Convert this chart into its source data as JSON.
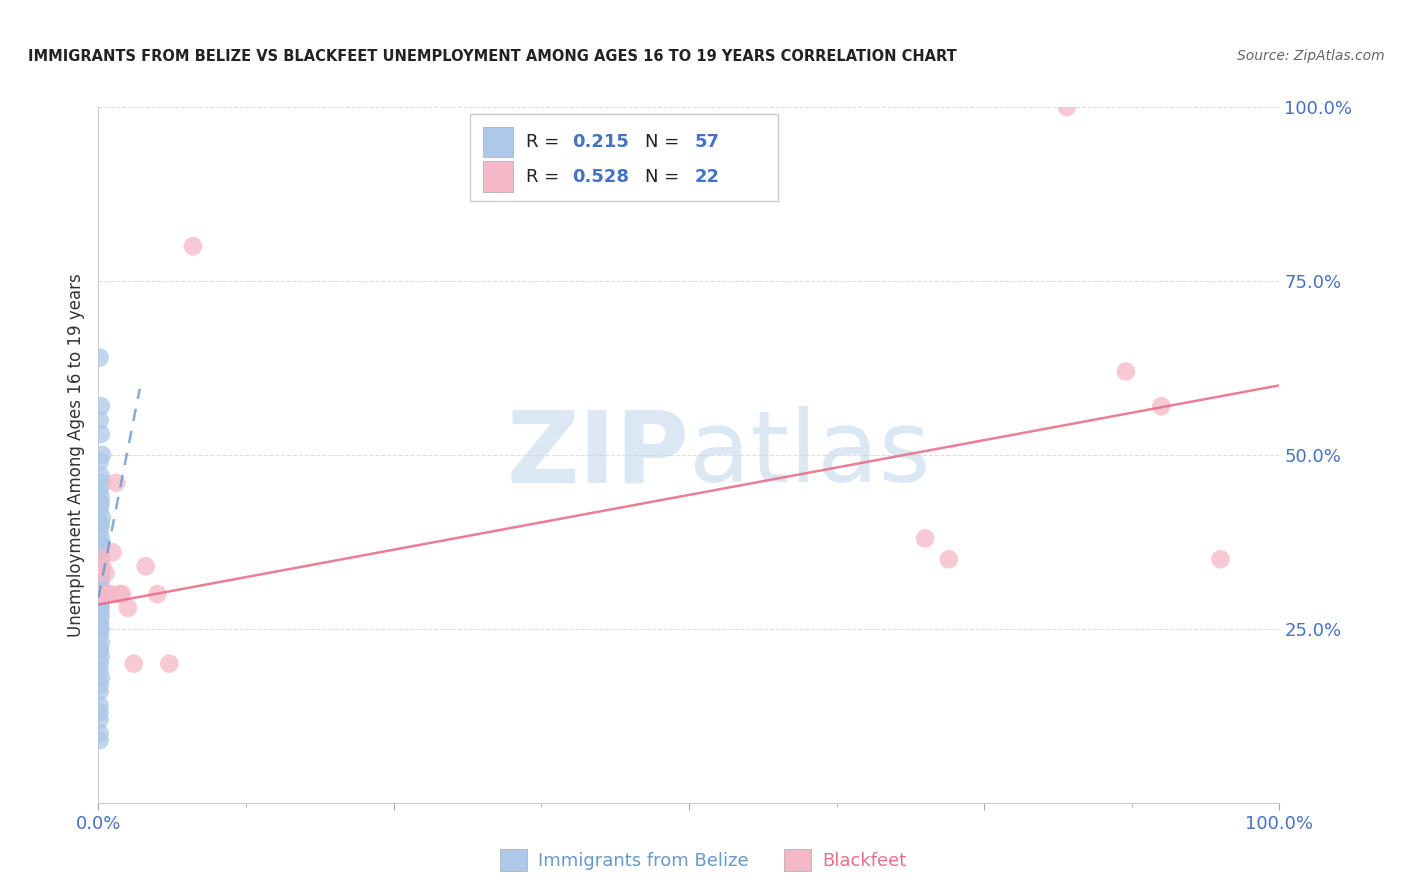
{
  "title": "IMMIGRANTS FROM BELIZE VS BLACKFEET UNEMPLOYMENT AMONG AGES 16 TO 19 YEARS CORRELATION CHART",
  "source": "Source: ZipAtlas.com",
  "ylabel": "Unemployment Among Ages 16 to 19 years",
  "watermark_zip": "ZIP",
  "watermark_atlas": "atlas",
  "series1_label": "Immigrants from Belize",
  "series1_R": "0.215",
  "series1_N": "57",
  "series1_color": "#adc8e8",
  "series1_line_color": "#6699cc",
  "series2_label": "Blackfeet",
  "series2_R": "0.528",
  "series2_N": "22",
  "series2_color": "#f5b8c8",
  "series2_line_color": "#e8708a",
  "blue_x": [
    0.001,
    0.002,
    0.001,
    0.002,
    0.003,
    0.001,
    0.002,
    0.003,
    0.001,
    0.002,
    0.001,
    0.002,
    0.001,
    0.003,
    0.001,
    0.002,
    0.001,
    0.002,
    0.001,
    0.003,
    0.001,
    0.002,
    0.001,
    0.001,
    0.002,
    0.001,
    0.002,
    0.001,
    0.001,
    0.002,
    0.001,
    0.001,
    0.002,
    0.001,
    0.001,
    0.002,
    0.001,
    0.002,
    0.001,
    0.001,
    0.002,
    0.001,
    0.001,
    0.002,
    0.001,
    0.001,
    0.002,
    0.001,
    0.001,
    0.002,
    0.001,
    0.001,
    0.001,
    0.001,
    0.001,
    0.001,
    0.001
  ],
  "blue_y": [
    0.64,
    0.57,
    0.55,
    0.53,
    0.5,
    0.49,
    0.47,
    0.46,
    0.45,
    0.44,
    0.43,
    0.43,
    0.42,
    0.41,
    0.4,
    0.4,
    0.39,
    0.38,
    0.37,
    0.37,
    0.36,
    0.35,
    0.35,
    0.34,
    0.33,
    0.33,
    0.32,
    0.32,
    0.31,
    0.31,
    0.3,
    0.3,
    0.29,
    0.29,
    0.28,
    0.28,
    0.27,
    0.27,
    0.26,
    0.26,
    0.25,
    0.25,
    0.24,
    0.23,
    0.22,
    0.22,
    0.21,
    0.2,
    0.19,
    0.18,
    0.17,
    0.16,
    0.14,
    0.13,
    0.12,
    0.1,
    0.09
  ],
  "pink_x": [
    0.001,
    0.002,
    0.003,
    0.006,
    0.008,
    0.01,
    0.012,
    0.015,
    0.018,
    0.02,
    0.025,
    0.03,
    0.04,
    0.05,
    0.06,
    0.08,
    0.7,
    0.72,
    0.82,
    0.87,
    0.9,
    0.95
  ],
  "pink_y": [
    0.3,
    0.35,
    0.34,
    0.33,
    0.3,
    0.3,
    0.36,
    0.46,
    0.3,
    0.3,
    0.28,
    0.2,
    0.34,
    0.3,
    0.2,
    0.8,
    0.38,
    0.35,
    1.0,
    0.62,
    0.57,
    0.35
  ],
  "blue_line_x": [
    0.0,
    0.035
  ],
  "blue_line_y": [
    0.295,
    0.595
  ],
  "pink_line_x": [
    0.0,
    1.0
  ],
  "pink_line_y": [
    0.285,
    0.6
  ],
  "xlim": [
    0,
    1.0
  ],
  "ylim": [
    0,
    1.0
  ],
  "yticks": [
    0.0,
    0.25,
    0.5,
    0.75,
    1.0
  ],
  "ytick_labels": [
    "",
    "25.0%",
    "50.0%",
    "75.0%",
    "100.0%"
  ],
  "xticks": [
    0.0,
    0.25,
    0.5,
    0.75,
    1.0
  ],
  "xtick_labels": [
    "0.0%",
    "",
    "",
    "",
    "100.0%"
  ],
  "background_color": "#ffffff",
  "grid_color": "#dddddd",
  "tick_color": "#4472c4",
  "legend_text_color": "#222222",
  "legend_value_color": "#4472c4",
  "title_color": "#222222",
  "source_color": "#666666"
}
